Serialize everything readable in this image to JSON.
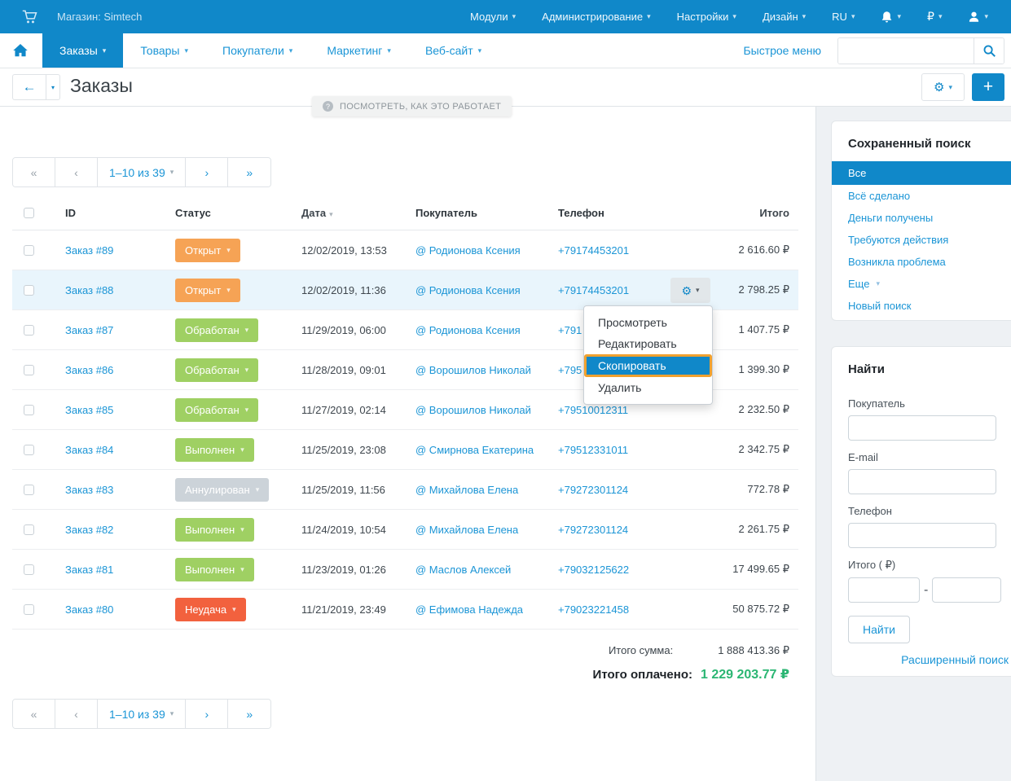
{
  "topbar": {
    "store_label": "Магазин: Simtech",
    "menus": [
      "Модули",
      "Администрирование",
      "Настройки",
      "Дизайн",
      "RU"
    ],
    "currency": "₽"
  },
  "navbar": {
    "tabs": [
      {
        "label": "Заказы",
        "active": true
      },
      {
        "label": "Товары",
        "active": false
      },
      {
        "label": "Покупатели",
        "active": false
      },
      {
        "label": "Маркетинг",
        "active": false
      },
      {
        "label": "Веб-сайт",
        "active": false
      }
    ],
    "quick_menu": "Быстрое меню",
    "search_value": ""
  },
  "page": {
    "title": "Заказы",
    "tooltip": "ПОСМОТРЕТЬ, КАК ЭТО РАБОТАЕТ"
  },
  "pagination": {
    "first": "«",
    "prev": "‹",
    "range": "1–10 из 39",
    "next": "›",
    "last": "»"
  },
  "table": {
    "columns": [
      {
        "key": "check",
        "label": ""
      },
      {
        "key": "id",
        "label": "ID"
      },
      {
        "key": "status",
        "label": "Статус"
      },
      {
        "key": "date",
        "label": "Дата",
        "sorted": true
      },
      {
        "key": "customer",
        "label": "Покупатель"
      },
      {
        "key": "phone",
        "label": "Телефон"
      },
      {
        "key": "total",
        "label": "Итого"
      }
    ],
    "rows": [
      {
        "id": "Заказ #89",
        "status": "Открыт",
        "status_class": "open",
        "date": "12/02/2019, 13:53",
        "customer": "@ Родионова Ксения",
        "phone": "+79174453201",
        "total": "2 616.60 ₽",
        "highlighted": false,
        "has_actions": false
      },
      {
        "id": "Заказ #88",
        "status": "Открыт",
        "status_class": "open",
        "date": "12/02/2019, 11:36",
        "customer": "@ Родионова Ксения",
        "phone": "+79174453201",
        "total": "2 798.25 ₽",
        "highlighted": true,
        "has_actions": true
      },
      {
        "id": "Заказ #87",
        "status": "Обработан",
        "status_class": "processed",
        "date": "11/29/2019, 06:00",
        "customer": "@ Родионова Ксения",
        "phone": "+791",
        "total": "1 407.75 ₽",
        "highlighted": false,
        "has_actions": false
      },
      {
        "id": "Заказ #86",
        "status": "Обработан",
        "status_class": "processed",
        "date": "11/28/2019, 09:01",
        "customer": "@ Ворошилов Николай",
        "phone": "+795",
        "total": "1 399.30 ₽",
        "highlighted": false,
        "has_actions": false
      },
      {
        "id": "Заказ #85",
        "status": "Обработан",
        "status_class": "processed",
        "date": "11/27/2019, 02:14",
        "customer": "@ Ворошилов Николай",
        "phone": "+79510012311",
        "total": "2 232.50 ₽",
        "highlighted": false,
        "has_actions": false
      },
      {
        "id": "Заказ #84",
        "status": "Выполнен",
        "status_class": "completed",
        "date": "11/25/2019, 23:08",
        "customer": "@ Смирнова Екатерина",
        "phone": "+79512331011",
        "total": "2 342.75 ₽",
        "highlighted": false,
        "has_actions": false
      },
      {
        "id": "Заказ #83",
        "status": "Аннулирован",
        "status_class": "cancelled",
        "date": "11/25/2019, 11:56",
        "customer": "@ Михайлова Елена",
        "phone": "+79272301124",
        "total": "772.78 ₽",
        "highlighted": false,
        "has_actions": false
      },
      {
        "id": "Заказ #82",
        "status": "Выполнен",
        "status_class": "completed",
        "date": "11/24/2019, 10:54",
        "customer": "@ Михайлова Елена",
        "phone": "+79272301124",
        "total": "2 261.75 ₽",
        "highlighted": false,
        "has_actions": false
      },
      {
        "id": "Заказ #81",
        "status": "Выполнен",
        "status_class": "completed",
        "date": "11/23/2019, 01:26",
        "customer": "@ Маслов Алексей",
        "phone": "+79032125622",
        "total": "17 499.65 ₽",
        "highlighted": false,
        "has_actions": false
      },
      {
        "id": "Заказ #80",
        "status": "Неудача",
        "status_class": "failed",
        "date": "11/21/2019, 23:49",
        "customer": "@ Ефимова Надежда",
        "phone": "+79023221458",
        "total": "50 875.72 ₽",
        "highlighted": false,
        "has_actions": false
      }
    ]
  },
  "row_menu": {
    "items": [
      "Просмотреть",
      "Редактировать",
      "Скопировать",
      "Удалить"
    ],
    "highlighted": "Скопировать"
  },
  "totals": {
    "sum_label": "Итого сумма:",
    "sum_value": "1 888 413.36 ₽",
    "paid_label": "Итого оплачено:",
    "paid_value": "1 229 203.77 ₽"
  },
  "saved_search": {
    "title": "Сохраненный поиск",
    "items": [
      {
        "label": "Все",
        "selected": true
      },
      {
        "label": "Всё сделано",
        "selected": false
      },
      {
        "label": "Деньги получены",
        "selected": false
      },
      {
        "label": "Требуются действия",
        "selected": false
      },
      {
        "label": "Возникла проблема",
        "selected": false
      },
      {
        "label": "Еще",
        "selected": false,
        "caret": true
      },
      {
        "label": "Новый поиск",
        "selected": false
      }
    ]
  },
  "search_panel": {
    "title": "Найти",
    "fields": [
      {
        "label": "Покупатель",
        "type": "text",
        "value": ""
      },
      {
        "label": "E-mail",
        "type": "text",
        "value": ""
      },
      {
        "label": "Телефон",
        "type": "text",
        "value": ""
      },
      {
        "label": "Итого ( ₽)",
        "type": "range",
        "value_from": "",
        "value_to": ""
      }
    ],
    "range_separator": "-",
    "button_label": "Найти",
    "advanced_label": "Расширенный поиск"
  },
  "colors": {
    "primary_blue": "#1088c9",
    "link_blue": "#1b95d6",
    "paid_green": "#2bb673",
    "menu_highlight_border": "#f0a12f",
    "status": {
      "open": "#f6a355",
      "processed": "#9fd063",
      "completed": "#9fd063",
      "cancelled": "#ccd3d9",
      "failed": "#f2613e"
    }
  }
}
